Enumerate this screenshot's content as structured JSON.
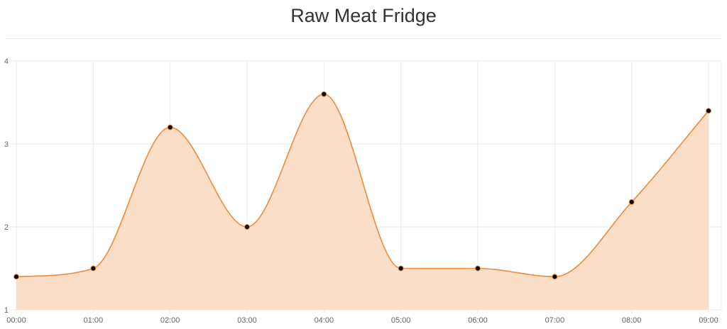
{
  "title": "Raw Meat Fridge",
  "colors": {
    "line": "#f08a3a",
    "fill": "#fadec8",
    "point": "#000000",
    "grid": "#ebebeb"
  },
  "chart_data": {
    "type": "area",
    "title": "Raw Meat Fridge",
    "categories": [
      "00:00",
      "01:00",
      "02:00",
      "03:00",
      "04:00",
      "05:00",
      "06:00",
      "07:00",
      "08:00",
      "09:00"
    ],
    "series": [
      {
        "values": [
          1.4,
          1.5,
          3.2,
          2.0,
          3.6,
          1.5,
          1.5,
          1.4,
          2.3,
          3.4
        ]
      }
    ],
    "yticks": [
      "1",
      "2",
      "3",
      "4"
    ],
    "ylim": [
      1,
      4
    ],
    "grid": true,
    "legend": "none"
  }
}
